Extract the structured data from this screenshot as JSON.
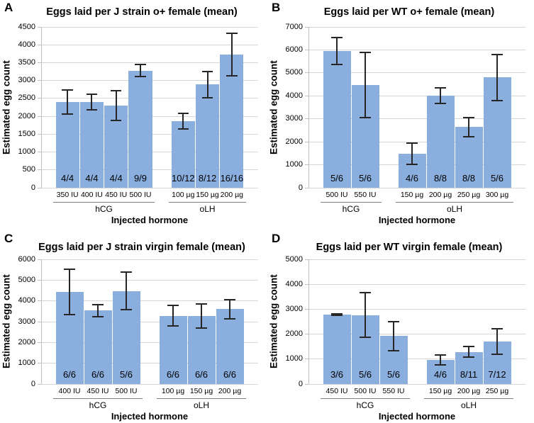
{
  "figure": {
    "background": "#ffffff",
    "bar_color": "#8aafde",
    "grid_color": "#d6d6d6",
    "axis_color": "#bfbfbf",
    "error_bar_color": "#262626",
    "group_underline_color": "#7f7f7f"
  },
  "chart_data": [
    {
      "panel": "A",
      "type": "bar",
      "title": "Eggs laid per J strain o+ female (mean)",
      "ylabel": "Estimated egg count",
      "xlabel": "Injected hormone",
      "ylim": [
        0,
        4500
      ],
      "ytick_step": 500,
      "grid": true,
      "legend": "none",
      "yticks": [
        "0",
        "500",
        "1000",
        "1500",
        "2000",
        "2500",
        "3000",
        "3500",
        "4000",
        "4500"
      ],
      "groups": [
        {
          "name": "hCG",
          "categories": [
            "350 IU",
            "400 IU",
            "450 IU",
            "500 IU"
          ],
          "values": [
            2400,
            2400,
            2300,
            3280
          ],
          "errors": [
            350,
            240,
            440,
            190
          ],
          "bar_labels": [
            "4/4",
            "4/4",
            "4/4",
            "9/9"
          ]
        },
        {
          "name": "oLH",
          "categories": [
            "100 µg",
            "150 µg",
            "200 µg"
          ],
          "values": [
            1870,
            2890,
            3730
          ],
          "errors": [
            240,
            390,
            620
          ],
          "bar_labels": [
            "10/12",
            "8/12",
            "16/16"
          ]
        }
      ]
    },
    {
      "panel": "B",
      "type": "bar",
      "title": "Eggs laid per WT o+ female (mean)",
      "ylabel": "Estimated egg count",
      "xlabel": "Injected hormone",
      "ylim": [
        0,
        7000
      ],
      "ytick_step": 1000,
      "grid": true,
      "legend": "none",
      "yticks": [
        "0",
        "1000",
        "2000",
        "3000",
        "4000",
        "5000",
        "6000",
        "7000"
      ],
      "groups": [
        {
          "name": "hCG",
          "categories": [
            "500 IU",
            "550 IU"
          ],
          "values": [
            5950,
            4480
          ],
          "errors": [
            630,
            1450
          ],
          "bar_labels": [
            "5/6",
            "5/6"
          ]
        },
        {
          "name": "oLH",
          "categories": [
            "150 µg",
            "200 µg",
            "250 µg",
            "300 µg"
          ],
          "values": [
            1480,
            4000,
            2640,
            4800
          ],
          "errors": [
            490,
            370,
            450,
            1040
          ],
          "bar_labels": [
            "4/6",
            "8/8",
            "8/8",
            "5/6"
          ]
        }
      ]
    },
    {
      "panel": "C",
      "type": "bar",
      "title": "Eggs laid per J strain virgin female (mean)",
      "ylabel": "Estimated egg count",
      "xlabel": "Injected hormone",
      "ylim": [
        0,
        6000
      ],
      "ytick_step": 1000,
      "grid": true,
      "legend": "none",
      "yticks": [
        "0",
        "1000",
        "2000",
        "3000",
        "4000",
        "5000",
        "6000"
      ],
      "groups": [
        {
          "name": "hCG",
          "categories": [
            "400 IU",
            "450 IU",
            "500 IU"
          ],
          "values": [
            4430,
            3530,
            4480
          ],
          "errors": [
            1120,
            330,
            950
          ],
          "bar_labels": [
            "6/6",
            "6/6",
            "5/6"
          ]
        },
        {
          "name": "oLH",
          "categories": [
            "100 µg",
            "150 µg",
            "200 µg"
          ],
          "values": [
            3290,
            3270,
            3600
          ],
          "errors": [
            540,
            610,
            490
          ],
          "bar_labels": [
            "6/6",
            "6/6",
            "6/6"
          ]
        }
      ]
    },
    {
      "panel": "D",
      "type": "bar",
      "title": "Eggs laid per WT virgin female (mean)",
      "ylabel": "Estimated egg count",
      "xlabel": "Injected hormone",
      "ylim": [
        0,
        5000
      ],
      "ytick_step": 1000,
      "grid": true,
      "legend": "none",
      "yticks": [
        "0",
        "1000",
        "2000",
        "3000",
        "4000",
        "5000"
      ],
      "groups": [
        {
          "name": "hCG",
          "categories": [
            "450 IU",
            "500 IU",
            "550 IU"
          ],
          "values": [
            2790,
            2760,
            1930
          ],
          "errors": [
            60,
            920,
            610
          ],
          "bar_labels": [
            "3/6",
            "5/6",
            "5/6"
          ]
        },
        {
          "name": "oLH",
          "categories": [
            "150 µg",
            "200 µg",
            "250 µg"
          ],
          "values": [
            960,
            1280,
            1700
          ],
          "errors": [
            230,
            240,
            540
          ],
          "bar_labels": [
            "4/6",
            "8/11",
            "7/12"
          ]
        }
      ]
    }
  ]
}
